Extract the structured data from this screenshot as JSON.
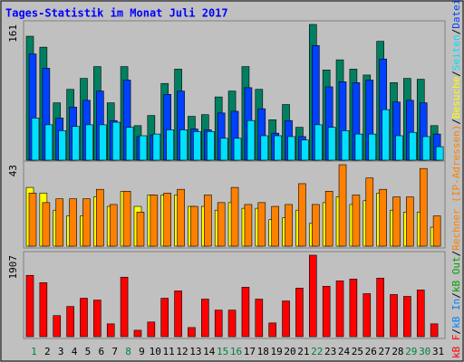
{
  "chart_data": [
    {
      "type": "bar",
      "title": "Tages-Statistik im Monat Juli 2017",
      "ylim": [
        0,
        161
      ],
      "yticks": [
        161
      ],
      "series": [
        {
          "name": "Anfragen",
          "color": "#008060",
          "values": [
            147,
            134,
            68,
            84,
            97,
            111,
            68,
            111,
            41,
            53,
            91,
            108,
            52,
            54,
            75,
            82,
            111,
            84,
            48,
            66,
            39,
            161,
            107,
            119,
            108,
            101,
            141,
            92,
            97,
            96,
            41
          ]
        },
        {
          "name": "Dateien",
          "color": "#0040ff",
          "values": [
            126,
            109,
            50,
            63,
            71,
            82,
            47,
            95,
            28,
            30,
            78,
            82,
            37,
            36,
            56,
            58,
            86,
            61,
            32,
            47,
            28,
            136,
            87,
            93,
            92,
            95,
            120,
            69,
            71,
            68,
            31
          ]
        },
        {
          "name": "Seiten",
          "color": "#00e0ff",
          "values": [
            50,
            42,
            35,
            40,
            42,
            42,
            45,
            39,
            29,
            31,
            36,
            36,
            34,
            34,
            26,
            26,
            47,
            29,
            29,
            28,
            24,
            42,
            39,
            35,
            31,
            31,
            60,
            29,
            33,
            28,
            16
          ]
        }
      ]
    },
    {
      "type": "bar",
      "ylim": [
        0,
        43
      ],
      "yticks": [
        43
      ],
      "series": [
        {
          "name": "Besuche",
          "color": "#ffff00",
          "values": [
            31,
            28,
            19,
            16,
            16,
            26,
            21,
            29,
            21,
            27,
            27,
            27,
            21,
            21,
            19,
            23,
            20,
            20,
            14,
            15,
            19,
            12,
            23,
            26,
            22,
            24,
            28,
            19,
            18,
            18,
            10
          ]
        },
        {
          "name": "Rechner (IP-Adressen)",
          "color": "#ff8000",
          "values": [
            28,
            23,
            25,
            25,
            25,
            30,
            22,
            29,
            18,
            27,
            28,
            30,
            21,
            27,
            23,
            31,
            22,
            23,
            21,
            22,
            33,
            22,
            29,
            43,
            27,
            36,
            30,
            26,
            26,
            41,
            16
          ]
        }
      ]
    },
    {
      "type": "bar",
      "ylim": [
        0,
        1907
      ],
      "yticks": [
        1907
      ],
      "categories": [
        "1",
        "2",
        "3",
        "4",
        "5",
        "6",
        "7",
        "8",
        "9",
        "10",
        "11",
        "12",
        "13",
        "14",
        "15",
        "16",
        "17",
        "18",
        "19",
        "20",
        "21",
        "22",
        "23",
        "24",
        "25",
        "26",
        "27",
        "28",
        "29",
        "30",
        "31"
      ],
      "category_colors": [
        "#008040",
        "#000000",
        "#000000",
        "#000000",
        "#000000",
        "#000000",
        "#000000",
        "#008040",
        "#000000",
        "#000000",
        "#000000",
        "#000000",
        "#000000",
        "#000000",
        "#008040",
        "#008040",
        "#000000",
        "#000000",
        "#000000",
        "#000000",
        "#000000",
        "#008040",
        "#000000",
        "#000000",
        "#000000",
        "#000000",
        "#000000",
        "#000000",
        "#008040",
        "#008040",
        "#000000"
      ],
      "series": [
        {
          "name": "kB F",
          "color": "#ff0000",
          "values": [
            1436,
            1264,
            493,
            707,
            900,
            857,
            300,
            1393,
            150,
            343,
            900,
            1071,
            214,
            879,
            621,
            621,
            1157,
            879,
            321,
            836,
            1136,
            1907,
            1179,
            1307,
            1350,
            1007,
            1371,
            986,
            943,
            1093,
            300
          ]
        }
      ],
      "legend_extra": [
        {
          "name": "kB In",
          "color": "#0080ff"
        },
        {
          "name": "kB Out",
          "color": "#00a000"
        }
      ]
    }
  ],
  "legend_separator": "/"
}
